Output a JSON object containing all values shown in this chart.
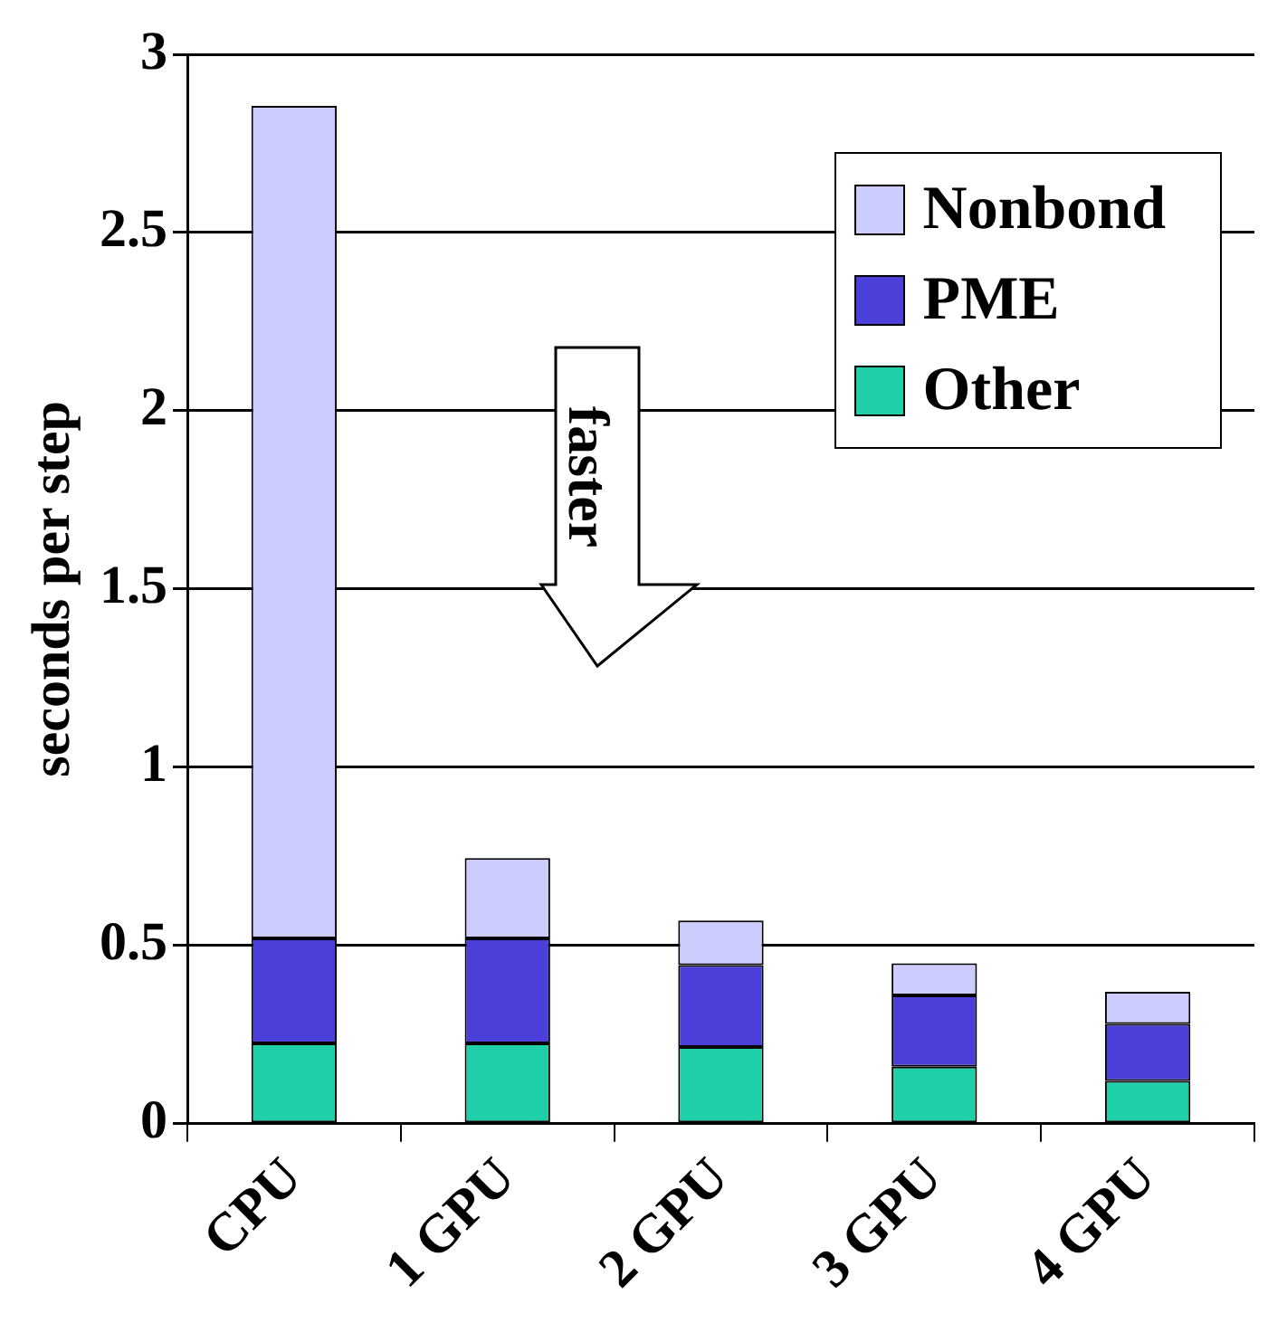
{
  "chart_data": {
    "type": "bar",
    "stacked": true,
    "ylabel": "seconds per step",
    "categories": [
      "CPU",
      "1 GPU",
      "2 GPU",
      "3 GPU",
      "4 GPU"
    ],
    "series": [
      {
        "name": "Other",
        "color": "#1ecfa8",
        "values": [
          0.225,
          0.225,
          0.215,
          0.16,
          0.12
        ]
      },
      {
        "name": "PME",
        "color": "#4b3fd9",
        "values": [
          0.295,
          0.295,
          0.23,
          0.2,
          0.16
        ]
      },
      {
        "name": "Nonbond",
        "color": "#ccccff",
        "values": [
          2.335,
          0.225,
          0.125,
          0.09,
          0.09
        ]
      }
    ],
    "ylim": [
      0,
      3
    ],
    "yticks": [
      0,
      0.5,
      1,
      1.5,
      2,
      2.5,
      3
    ],
    "grid": "y",
    "legend": "top right",
    "annotations": [
      "faster"
    ]
  }
}
